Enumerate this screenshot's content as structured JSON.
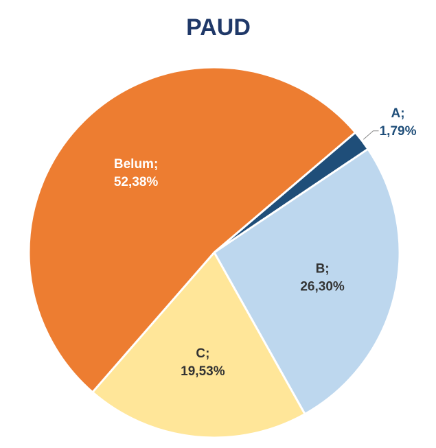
{
  "chart_data": {
    "type": "pie",
    "title": "PAUD",
    "categories": [
      "A;",
      "B;",
      "C;",
      "Belum;"
    ],
    "values": [
      1.79,
      26.3,
      19.53,
      52.38
    ],
    "value_labels": [
      "1,79%",
      "26,30%",
      "19,53%",
      "52,38%"
    ],
    "colors": [
      "#1f4e79",
      "#bdd7ee",
      "#ffe699",
      "#ed7d31"
    ]
  }
}
